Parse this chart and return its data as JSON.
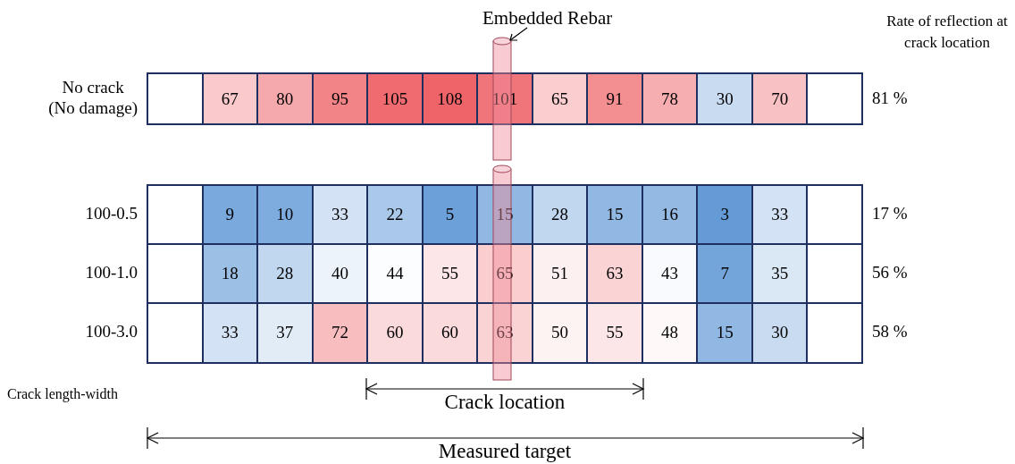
{
  "chart_data": [
    {
      "type": "heatmap",
      "categories": [
        null,
        null,
        null,
        null,
        null,
        null,
        null,
        null,
        null,
        null,
        null,
        null,
        null
      ],
      "y_categories": [
        "No crack\n(No damage)"
      ],
      "y2_categories": [
        "81 %"
      ],
      "y2label": "Rate of reflection at crack location",
      "annotations": [
        "Embedded Rebar"
      ],
      "data_labels": true,
      "cells": [
        [
          null,
          67,
          80,
          95,
          105,
          108,
          101,
          65,
          91,
          78,
          30,
          70,
          null
        ]
      ]
    },
    {
      "type": "heatmap",
      "categories": [
        null,
        null,
        null,
        null,
        null,
        null,
        null,
        null,
        null,
        null,
        null,
        null,
        null
      ],
      "y_categories": [
        "100-0.5",
        "100-1.0",
        "100-3.0"
      ],
      "y2_categories": [
        "17 %",
        "56 %",
        "58 %"
      ],
      "annotations": [
        "Crack length-width",
        "Crack location",
        "Measured target"
      ],
      "data_labels": true,
      "cells": [
        [
          null,
          9,
          10,
          33,
          22,
          5,
          15,
          28,
          15,
          16,
          3,
          33,
          null
        ],
        [
          null,
          18,
          28,
          40,
          44,
          55,
          65,
          51,
          63,
          43,
          7,
          35,
          null
        ],
        [
          null,
          33,
          37,
          72,
          60,
          60,
          63,
          50,
          55,
          48,
          15,
          30,
          null
        ]
      ]
    }
  ]
}
